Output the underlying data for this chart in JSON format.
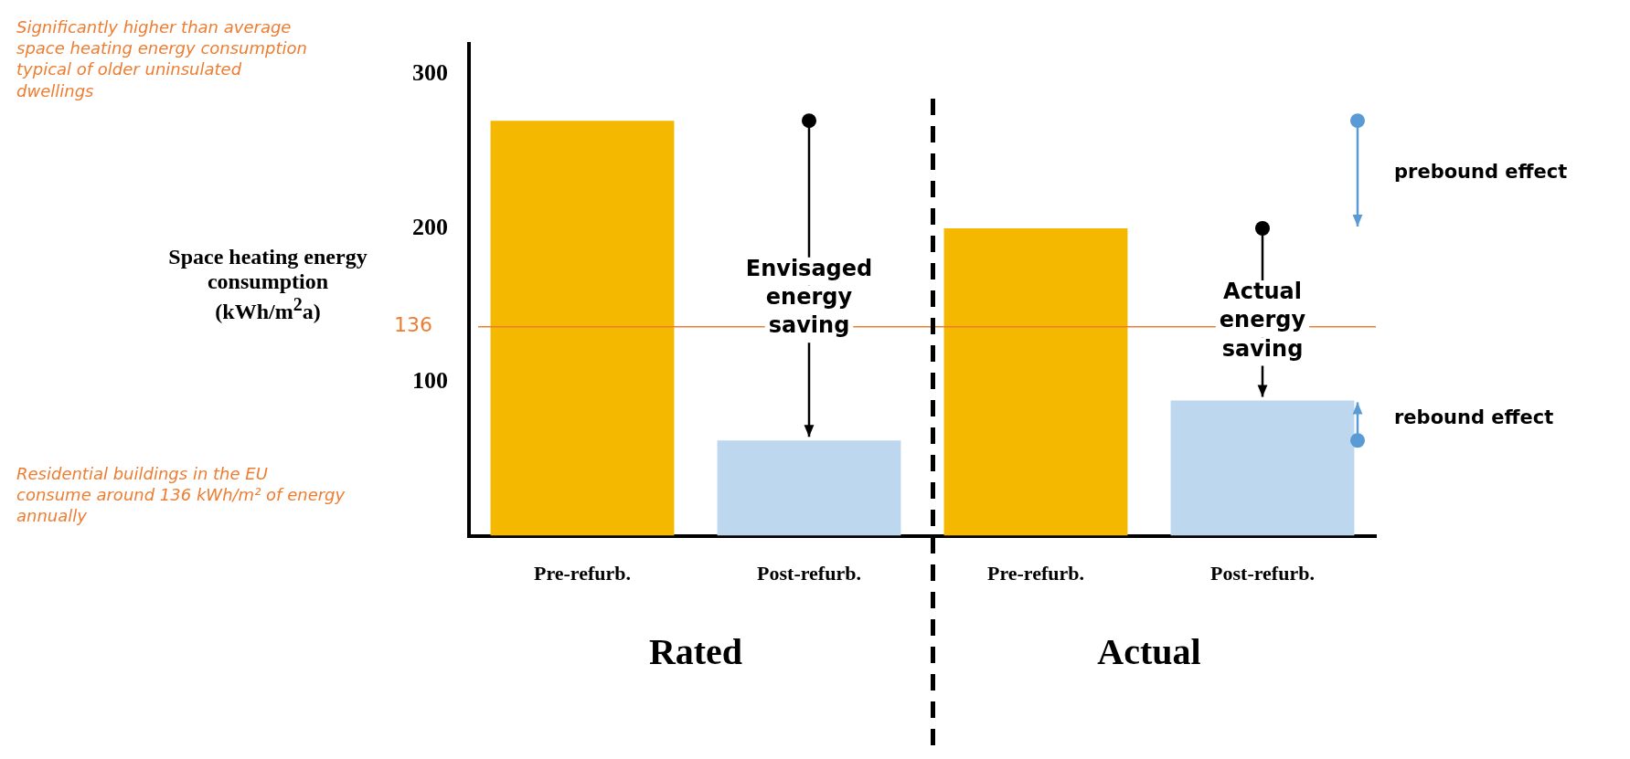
{
  "chart_data": {
    "type": "bar",
    "ylabel": "Space heating energy consumption (kWh/m$^{2}$a)",
    "categories": [
      "Pre-refurb.",
      "Post-refurb.",
      "Pre-refurb.",
      "Post-refurb."
    ],
    "values": [
      270,
      62,
      200,
      88
    ],
    "colors": [
      "#f5b800",
      "#bdd7ee",
      "#f5b800",
      "#bdd7ee"
    ],
    "ylim": [
      0,
      320
    ],
    "yticks": [
      100,
      200,
      300
    ],
    "ref_lines": [
      {
        "axis": "y",
        "value": 136,
        "label": "136",
        "color": "#ed7d31"
      }
    ],
    "annotations": [
      "Significantly higher than average space heating energy consumption typical of older uninsulated dwellings",
      "Residential buildings in the EU consume around 136 kWh/m² of energy annually",
      "Envisaged energy saving",
      "Actual energy saving",
      "prebound effect",
      "rebound effect",
      "Rated",
      "Actual"
    ],
    "grid": false,
    "legend": false
  }
}
